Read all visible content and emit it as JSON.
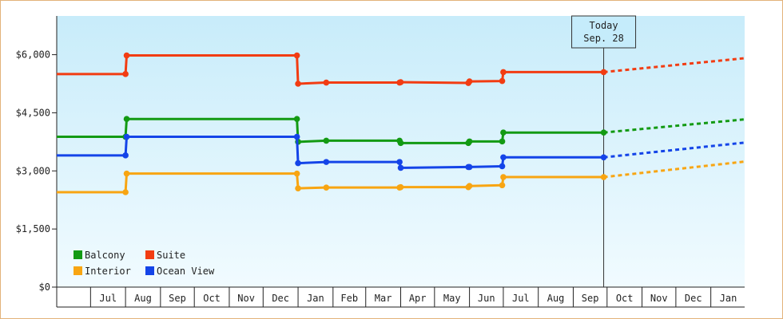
{
  "chart_data": {
    "type": "line",
    "ylim": [
      0,
      7000
    ],
    "y_ticks": [
      {
        "value": 0,
        "label": "$0"
      },
      {
        "value": 1500,
        "label": "$1,500"
      },
      {
        "value": 3000,
        "label": "$3,000"
      },
      {
        "value": 4500,
        "label": "$4,500"
      },
      {
        "value": 6000,
        "label": "$6,000"
      }
    ],
    "x_range": [
      "2023-06-01",
      "2025-01-31"
    ],
    "month_labels": [
      {
        "label": "Jul",
        "start": "2023-07-01",
        "end": "2023-08-01"
      },
      {
        "label": "Aug",
        "start": "2023-08-01",
        "end": "2023-09-01"
      },
      {
        "label": "Sep",
        "start": "2023-09-01",
        "end": "2023-10-01"
      },
      {
        "label": "Oct",
        "start": "2023-10-01",
        "end": "2023-11-01"
      },
      {
        "label": "Nov",
        "start": "2023-11-01",
        "end": "2023-12-01"
      },
      {
        "label": "Dec",
        "start": "2023-12-01",
        "end": "2024-01-01"
      },
      {
        "label": "Jan",
        "start": "2024-01-01",
        "end": "2024-02-01"
      },
      {
        "label": "Feb",
        "start": "2024-02-01",
        "end": "2024-03-01"
      },
      {
        "label": "Mar",
        "start": "2024-03-01",
        "end": "2024-04-01"
      },
      {
        "label": "Apr",
        "start": "2024-04-01",
        "end": "2024-05-01"
      },
      {
        "label": "May",
        "start": "2024-05-01",
        "end": "2024-06-01"
      },
      {
        "label": "Jun",
        "start": "2024-06-01",
        "end": "2024-07-01"
      },
      {
        "label": "Jul",
        "start": "2024-07-01",
        "end": "2024-08-01"
      },
      {
        "label": "Aug",
        "start": "2024-08-01",
        "end": "2024-09-01"
      },
      {
        "label": "Sep",
        "start": "2024-09-01",
        "end": "2024-10-01"
      },
      {
        "label": "Oct",
        "start": "2024-10-01",
        "end": "2024-11-01"
      },
      {
        "label": "Nov",
        "start": "2024-11-01",
        "end": "2024-12-01"
      },
      {
        "label": "Dec",
        "start": "2024-12-01",
        "end": "2025-01-01"
      },
      {
        "label": "Jan",
        "start": "2025-01-01",
        "end": "2025-02-01"
      }
    ],
    "today": {
      "line1": "Today",
      "line2": "Sep. 28",
      "date": "2024-09-28"
    },
    "legend": {
      "placement": "bottom-left"
    },
    "series": [
      {
        "name": "Balcony",
        "color": "#139a13",
        "points": [
          [
            "2023-06-01",
            3880
          ],
          [
            "2023-08-01",
            3880
          ],
          [
            "2023-08-02",
            4340
          ],
          [
            "2023-12-31",
            4340
          ],
          [
            "2024-01-01",
            3750
          ],
          [
            "2024-01-26",
            3780
          ],
          [
            "2024-03-31",
            3780
          ],
          [
            "2024-04-01",
            3720
          ],
          [
            "2024-05-31",
            3720
          ],
          [
            "2024-06-01",
            3760
          ],
          [
            "2024-06-30",
            3760
          ],
          [
            "2024-07-01",
            3990
          ],
          [
            "2024-09-28",
            3990
          ]
        ],
        "forecast": [
          [
            "2024-09-28",
            3990
          ],
          [
            "2025-01-31",
            4330
          ]
        ]
      },
      {
        "name": "Suite",
        "color": "#f23c12",
        "points": [
          [
            "2023-06-01",
            5500
          ],
          [
            "2023-08-01",
            5500
          ],
          [
            "2023-08-02",
            5980
          ],
          [
            "2023-12-31",
            5980
          ],
          [
            "2024-01-01",
            5250
          ],
          [
            "2024-01-26",
            5280
          ],
          [
            "2024-03-31",
            5280
          ],
          [
            "2024-04-01",
            5290
          ],
          [
            "2024-05-31",
            5270
          ],
          [
            "2024-06-01",
            5310
          ],
          [
            "2024-06-30",
            5320
          ],
          [
            "2024-07-01",
            5550
          ],
          [
            "2024-09-28",
            5550
          ]
        ],
        "forecast": [
          [
            "2024-09-28",
            5550
          ],
          [
            "2025-01-31",
            5910
          ]
        ]
      },
      {
        "name": "Interior",
        "color": "#f8a512",
        "points": [
          [
            "2023-06-01",
            2450
          ],
          [
            "2023-08-01",
            2450
          ],
          [
            "2023-08-02",
            2930
          ],
          [
            "2023-12-31",
            2930
          ],
          [
            "2024-01-01",
            2550
          ],
          [
            "2024-01-26",
            2570
          ],
          [
            "2024-03-31",
            2570
          ],
          [
            "2024-04-01",
            2580
          ],
          [
            "2024-05-31",
            2580
          ],
          [
            "2024-06-01",
            2610
          ],
          [
            "2024-06-30",
            2630
          ],
          [
            "2024-07-01",
            2840
          ],
          [
            "2024-09-28",
            2840
          ]
        ],
        "forecast": [
          [
            "2024-09-28",
            2840
          ],
          [
            "2025-01-31",
            3240
          ]
        ]
      },
      {
        "name": "Ocean View",
        "color": "#1444e8",
        "points": [
          [
            "2023-06-01",
            3400
          ],
          [
            "2023-08-01",
            3400
          ],
          [
            "2023-08-02",
            3880
          ],
          [
            "2023-12-31",
            3880
          ],
          [
            "2024-01-01",
            3200
          ],
          [
            "2024-01-26",
            3230
          ],
          [
            "2024-03-31",
            3230
          ],
          [
            "2024-04-01",
            3080
          ],
          [
            "2024-05-31",
            3100
          ],
          [
            "2024-06-01",
            3100
          ],
          [
            "2024-06-30",
            3120
          ],
          [
            "2024-07-01",
            3350
          ],
          [
            "2024-09-28",
            3350
          ]
        ],
        "forecast": [
          [
            "2024-09-28",
            3350
          ],
          [
            "2025-01-31",
            3730
          ]
        ]
      }
    ]
  }
}
